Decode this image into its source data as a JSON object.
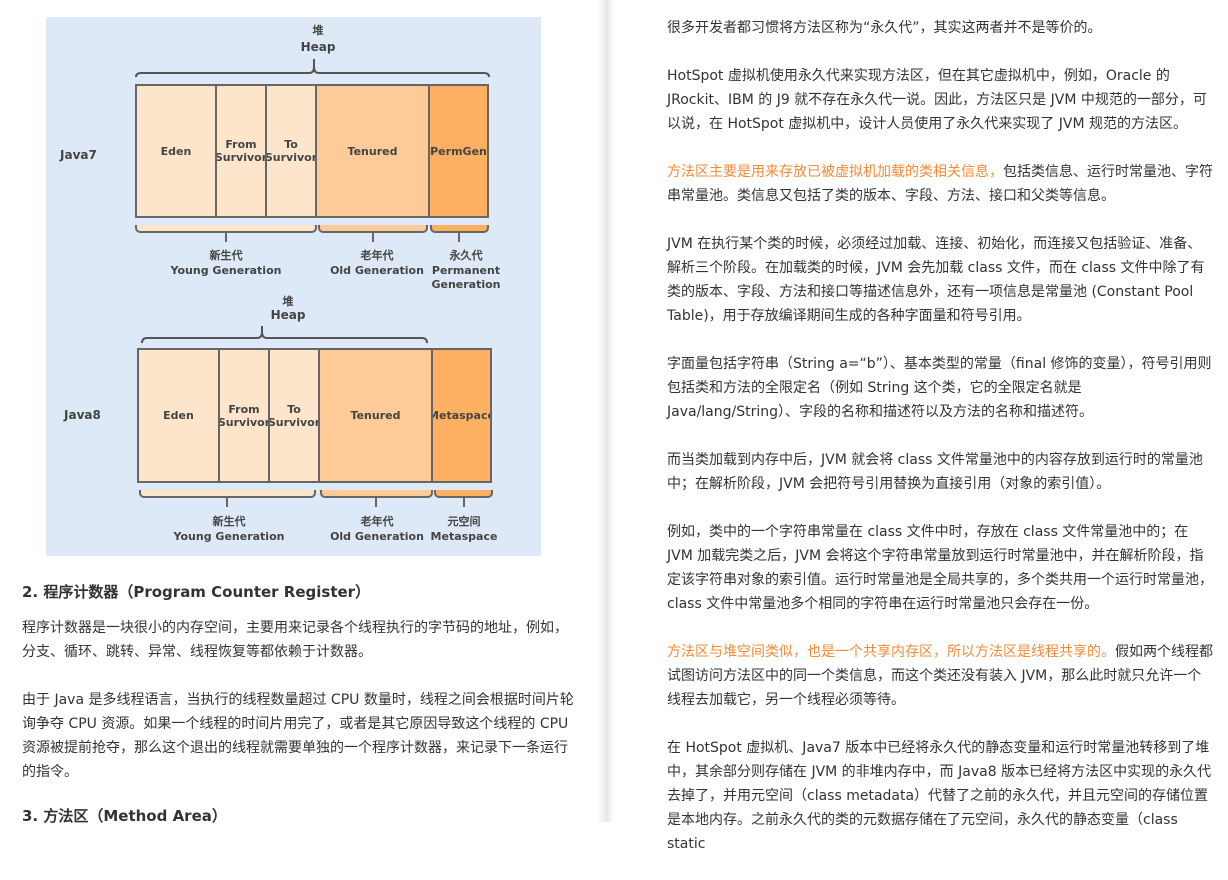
{
  "diagram": {
    "java7": {
      "row_label": "Java7",
      "heap_cn": "堆",
      "heap_en": "Heap",
      "regions": [
        "Eden",
        "From\nSurvivor",
        "To\nSurvivor",
        "Tenured",
        "PermGen"
      ],
      "groups": [
        {
          "cn": "新生代",
          "en": "Young Generation"
        },
        {
          "cn": "老年代",
          "en": "Old Generation"
        },
        {
          "cn": "永久代",
          "en": "Permanent\nGeneration"
        }
      ]
    },
    "java8": {
      "row_label": "Java8",
      "heap_cn": "堆",
      "heap_en": "Heap",
      "regions": [
        "Eden",
        "From\nSurvivor",
        "To\nSurvivor",
        "Tenured",
        "Metaspace"
      ],
      "groups": [
        {
          "cn": "新生代",
          "en": "Young Generation"
        },
        {
          "cn": "老年代",
          "en": "Old Generation"
        },
        {
          "cn": "元空间",
          "en": "Metaspace"
        }
      ]
    },
    "colors": {
      "young": "#fde5cc",
      "old": "#fdca98",
      "perm": "#fdb062",
      "background": "#dde9f7"
    }
  },
  "left": {
    "heading2": "2. 程序计数器（Program Counter Register）",
    "p1": "程序计数器是一块很小的内存空间，主要用来记录各个线程执行的字节码的地址，例如，分支、循环、跳转、异常、线程恢复等都依赖于计数器。",
    "p2": "由于 Java 是多线程语言，当执行的线程数量超过 CPU 数量时，线程之间会根据时间片轮询争夺 CPU 资源。如果一个线程的时间片用完了，或者是其它原因导致这个线程的 CPU 资源被提前抢夺，那么这个退出的线程就需要单独的一个程序计数器，来记录下一条运行的指令。",
    "heading3": "3. 方法区（Method Area）"
  },
  "right": {
    "p1": "很多开发者都习惯将方法区称为“永久代”，其实这两者并不是等价的。",
    "p2": "HotSpot 虚拟机使用永久代来实现方法区，但在其它虚拟机中，例如，Oracle 的 JRockit、IBM 的 J9 就不存在永久代一说。因此，方法区只是 JVM 中规范的一部分，可以说，在 HotSpot 虚拟机中，设计人员使用了永久代来实现了 JVM 规范的方法区。",
    "p3_highlight": "方法区主要是用来存放已被虚拟机加载的类相关信息，",
    "p3_rest": "包括类信息、运行时常量池、字符串常量池。类信息又包括了类的版本、字段、方法、接口和父类等信息。",
    "p4": "JVM 在执行某个类的时候，必须经过加载、连接、初始化，而连接又包括验证、准备、解析三个阶段。在加载类的时候，JVM 会先加载 class 文件，而在 class 文件中除了有类的版本、字段、方法和接口等描述信息外，还有一项信息是常量池 (Constant Pool Table)，用于存放编译期间生成的各种字面量和符号引用。",
    "p5": "字面量包括字符串（String a=“b”）、基本类型的常量（final 修饰的变量），符号引用则包括类和方法的全限定名（例如 String 这个类，它的全限定名就是 Java/lang/String）、字段的名称和描述符以及方法的名称和描述符。",
    "p6": "而当类加载到内存中后，JVM 就会将 class 文件常量池中的内容存放到运行时的常量池中；在解析阶段，JVM 会把符号引用替换为直接引用（对象的索引值）。",
    "p7": "例如，类中的一个字符串常量在 class 文件中时，存放在 class 文件常量池中的；在 JVM 加载完类之后，JVM 会将这个字符串常量放到运行时常量池中，并在解析阶段，指定该字符串对象的索引值。运行时常量池是全局共享的，多个类共用一个运行时常量池，class 文件中常量池多个相同的字符串在运行时常量池只会存在一份。",
    "p8_highlight": "方法区与堆空间类似，也是一个共享内存区，所以方法区是线程共享的。",
    "p8_rest": "假如两个线程都试图访问方法区中的同一个类信息，而这个类还没有装入 JVM，那么此时就只允许一个线程去加载它，另一个线程必须等待。",
    "p9": "在 HotSpot 虚拟机、Java7 版本中已经将永久代的静态变量和运行时常量池转移到了堆中，其余部分则存储在 JVM 的非堆内存中，而 Java8 版本已经将方法区中实现的永久代去掉了，并用元空间（class metadata）代替了之前的永久代，并且元空间的存储位置是本地内存。之前永久代的类的元数据存储在了元空间，永久代的静态变量（class static"
  },
  "highlight_color": "#f78a36"
}
